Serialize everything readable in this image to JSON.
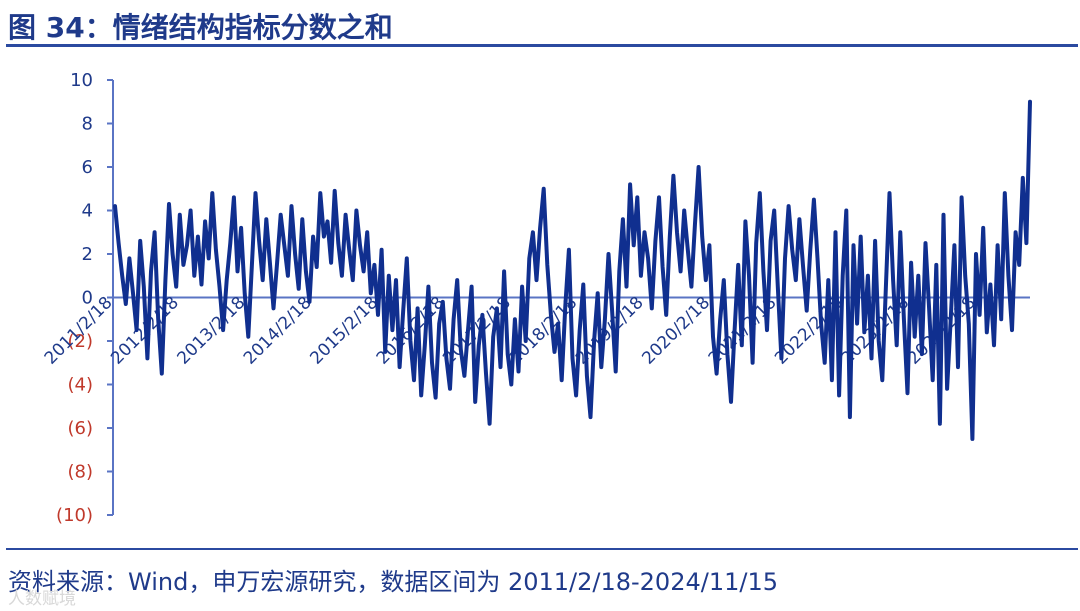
{
  "title": "图 34：情绪结构指标分数之和",
  "source": "资料来源：Wind，申万宏源研究，数据区间为 2011/2/18-2024/11/15",
  "watermark": "人数赋境",
  "colors": {
    "line": "#102f8f",
    "axis": "#5a74c4",
    "positive_label": "#1f3a8a",
    "negative_label": "#c0392b"
  },
  "chart_data": {
    "type": "line",
    "title": "",
    "xlabel": "",
    "ylabel": "",
    "ylim": [
      -10,
      10
    ],
    "y_ticks": [
      10,
      8,
      6,
      4,
      2,
      0,
      -2,
      -4,
      -6,
      -8,
      -10
    ],
    "y_tick_labels": [
      "10",
      "8",
      "6",
      "4",
      "2",
      "0",
      "(2)",
      "(4)",
      "(6)",
      "(8)",
      "(10)"
    ],
    "x_tick_labels": [
      "2011/2/18",
      "2012/2/18",
      "2013/2/18",
      "2014/2/18",
      "2015/2/18",
      "2016/2/18",
      "2017/2/18",
      "2018/2/18",
      "2019/2/18",
      "2020/2/18",
      "2021/2/18",
      "2022/2/18",
      "2023/2/18",
      "2024/2/18"
    ],
    "x_range": [
      "2011/2/18",
      "2024/11/15"
    ],
    "series": [
      {
        "values": [
          4.2,
          2.5,
          1.0,
          -0.3,
          1.8,
          0.2,
          -1.5,
          2.6,
          0.5,
          -2.8,
          1.2,
          3.0,
          -1.0,
          -3.5,
          0.8,
          4.3,
          2.0,
          0.5,
          3.8,
          1.5,
          2.4,
          4.0,
          1.0,
          2.8,
          0.6,
          3.5,
          1.8,
          4.8,
          2.2,
          0.5,
          -1.5,
          0.8,
          2.5,
          4.6,
          1.2,
          3.2,
          0.2,
          -1.8,
          1.5,
          4.8,
          2.6,
          0.8,
          3.6,
          1.6,
          -0.5,
          1.6,
          3.8,
          2.4,
          1.0,
          4.2,
          2.0,
          0.4,
          3.6,
          1.2,
          -0.2,
          2.8,
          1.4,
          4.8,
          2.8,
          3.5,
          1.6,
          4.9,
          2.5,
          1.0,
          3.8,
          2.2,
          0.8,
          4.0,
          2.4,
          1.2,
          3.0,
          0.2,
          1.5,
          -0.8,
          2.2,
          -2.5,
          1.0,
          -1.5,
          0.8,
          -3.2,
          -0.6,
          1.8,
          -2.0,
          -3.8,
          -0.5,
          -4.5,
          -2.2,
          0.5,
          -3.0,
          -4.6,
          -1.2,
          -0.2,
          -2.8,
          -4.2,
          -1.0,
          0.8,
          -2.4,
          -3.6,
          -1.5,
          0.5,
          -4.8,
          -2.2,
          -0.8,
          -3.5,
          -5.8,
          -1.8,
          -0.5,
          -3.2,
          1.2,
          -2.6,
          -4.0,
          -1.0,
          -3.4,
          0.5,
          -2.0,
          1.8,
          3.0,
          0.8,
          3.2,
          5.0,
          1.5,
          -0.8,
          -2.5,
          -1.2,
          -3.8,
          -0.4,
          2.2,
          -2.8,
          -4.5,
          -1.5,
          0.6,
          -3.6,
          -5.5,
          -2.0,
          0.2,
          -3.2,
          -1.0,
          2.0,
          -0.6,
          -3.4,
          1.2,
          3.6,
          0.5,
          5.2,
          2.4,
          4.6,
          1.0,
          3.0,
          1.8,
          -0.5,
          2.6,
          4.6,
          1.4,
          -0.8,
          2.8,
          5.6,
          3.0,
          1.2,
          4.0,
          2.2,
          0.5,
          3.4,
          6.0,
          2.8,
          0.8,
          2.4,
          -1.8,
          -3.5,
          -1.0,
          0.8,
          -2.6,
          -4.8,
          -1.5,
          1.5,
          -2.2,
          3.5,
          1.0,
          -3.0,
          2.5,
          4.8,
          1.2,
          -1.5,
          2.6,
          4.0,
          0.5,
          -2.8,
          1.8,
          4.2,
          2.2,
          0.8,
          3.6,
          1.4,
          -0.6,
          2.2,
          4.5,
          1.8,
          -1.2,
          -3.0,
          0.8,
          -3.8,
          3.0,
          -4.5,
          1.0,
          4.0,
          -5.5,
          2.4,
          -1.2,
          2.8,
          -1.6,
          1.0,
          -2.8,
          2.6,
          -2.0,
          -3.8,
          0.5,
          4.8,
          0.8,
          -2.2,
          3.0,
          -1.0,
          -4.4,
          1.6,
          -1.8,
          1.0,
          -2.6,
          2.5,
          -0.5,
          -3.8,
          1.5,
          -5.8,
          3.8,
          -4.2,
          -1.0,
          2.4,
          -3.2,
          4.6,
          1.0,
          -1.2,
          -6.5,
          2.0,
          -0.8,
          3.2,
          -1.6,
          0.6,
          -2.2,
          2.4,
          -1.0,
          4.8,
          1.0,
          -1.5,
          3.0,
          1.5,
          5.5,
          2.5,
          9.0
        ]
      }
    ]
  }
}
